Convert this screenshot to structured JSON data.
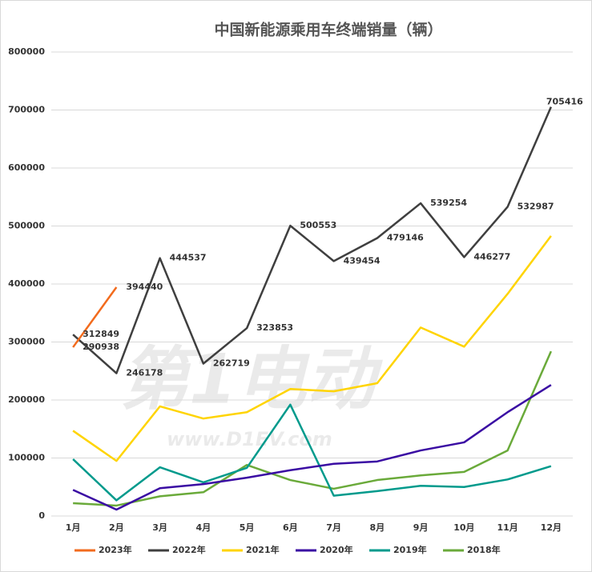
{
  "chart_data": {
    "type": "line",
    "title": "中国新能源乘用车终端销量（辆）",
    "watermark": {
      "brand": "第1电动",
      "url": "www.D1EV.com"
    },
    "categories": [
      "1月",
      "2月",
      "3月",
      "4月",
      "5月",
      "6月",
      "7月",
      "8月",
      "9月",
      "10月",
      "11月",
      "12月"
    ],
    "ylim": [
      0,
      800000
    ],
    "yticks": [
      0,
      100000,
      200000,
      300000,
      400000,
      500000,
      600000,
      700000,
      800000
    ],
    "grid": true,
    "legend": "bottom",
    "series": [
      {
        "name": "2023年",
        "color": "#f26b1d",
        "labels": true,
        "values": [
          290938,
          394440,
          null,
          null,
          null,
          null,
          null,
          null,
          null,
          null,
          null,
          null
        ]
      },
      {
        "name": "2022年",
        "color": "#3f3f3f",
        "labels": true,
        "values": [
          312849,
          246178,
          444537,
          262719,
          323853,
          500553,
          439454,
          479146,
          539254,
          446277,
          532987,
          705416
        ]
      },
      {
        "name": "2021年",
        "color": "#ffd400",
        "values": [
          147000,
          95000,
          189000,
          168000,
          179000,
          219000,
          215000,
          229000,
          325000,
          292000,
          383000,
          483000
        ]
      },
      {
        "name": "2020年",
        "color": "#3a0ca3",
        "values": [
          45000,
          11000,
          48000,
          55000,
          66000,
          79000,
          90000,
          94000,
          113000,
          127000,
          179000,
          226000
        ]
      },
      {
        "name": "2019年",
        "color": "#009a8c",
        "values": [
          98000,
          27000,
          84000,
          58000,
          83000,
          192000,
          35000,
          43000,
          52000,
          50000,
          63000,
          86000
        ]
      },
      {
        "name": "2018年",
        "color": "#6aaa3a",
        "values": [
          22000,
          18000,
          34000,
          41000,
          88000,
          62000,
          47000,
          62000,
          70000,
          76000,
          113000,
          284000
        ]
      }
    ]
  }
}
